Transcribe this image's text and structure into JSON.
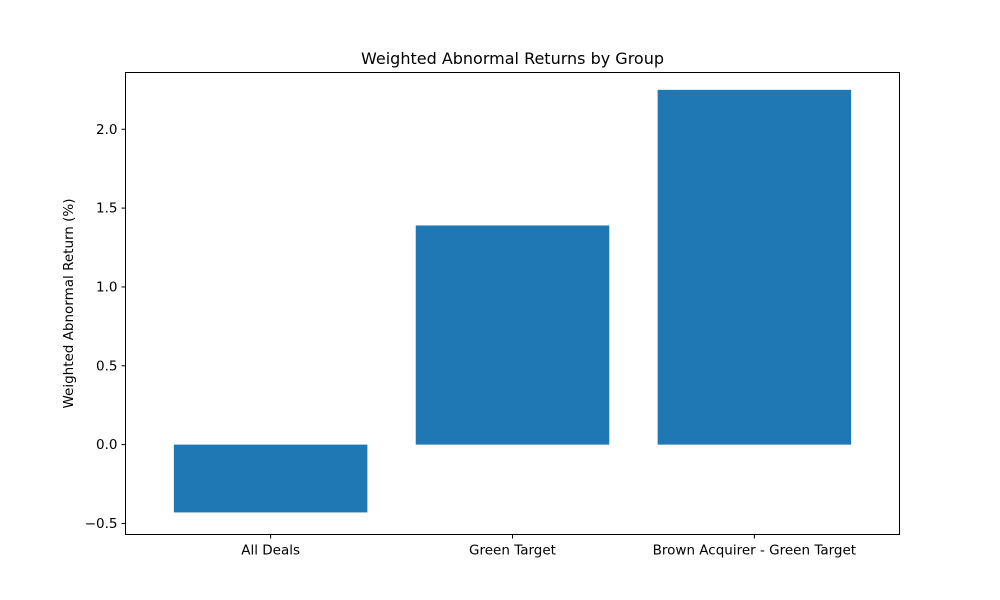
{
  "chart_data": {
    "type": "bar",
    "title": "Weighted Abnormal Returns by Group",
    "xlabel": "",
    "ylabel": "Weighted Abnormal Return (%)",
    "categories": [
      "All Deals",
      "Green Target",
      "Brown Acquirer - Green Target"
    ],
    "values": [
      -0.43,
      1.39,
      2.25
    ],
    "ylim": [
      -0.57,
      2.36
    ],
    "yticks": [
      -0.5,
      0.0,
      0.5,
      1.0,
      1.5,
      2.0
    ],
    "ytick_labels": [
      "−0.5",
      "0.0",
      "0.5",
      "1.0",
      "1.5",
      "2.0"
    ],
    "bar_color": "#1f77b4",
    "grid": false,
    "legend": null
  }
}
